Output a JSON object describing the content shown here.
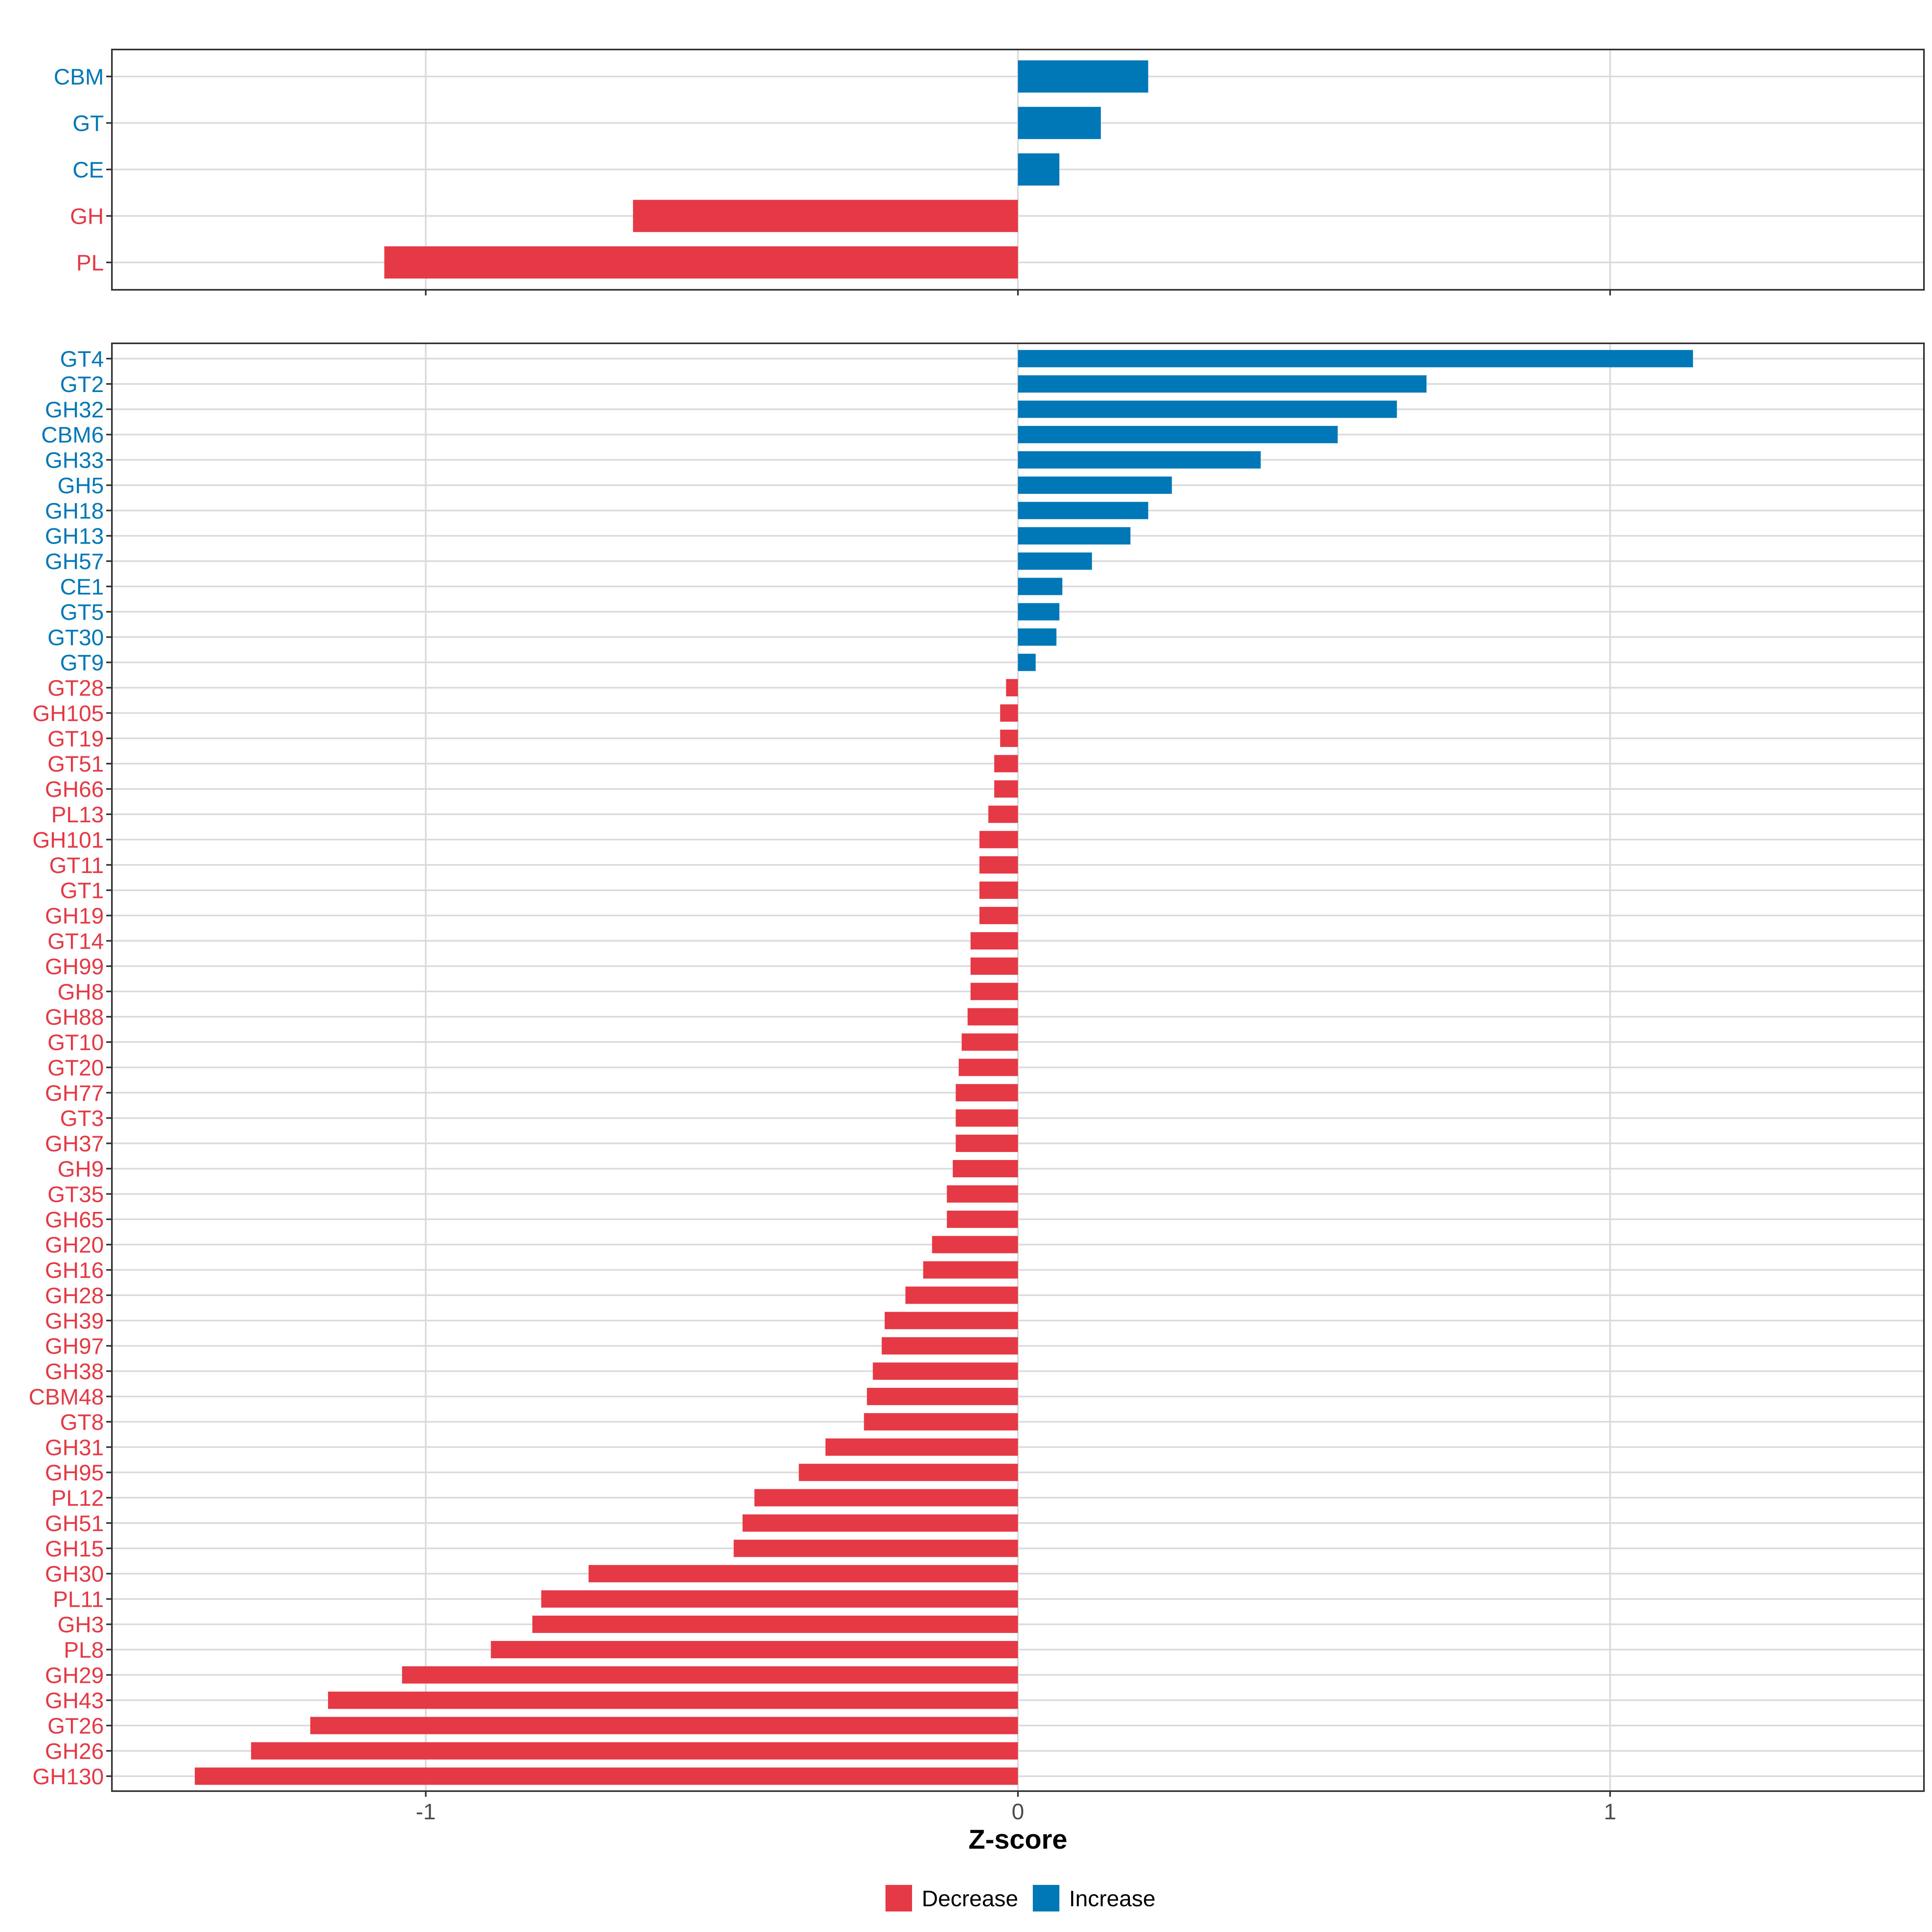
{
  "colors": {
    "decrease": "#E63946",
    "increase": "#0077B6",
    "grid": "#DADADA",
    "panel_border": "#333333",
    "tick_text": "#4D4D4D"
  },
  "chart_data": [
    {
      "type": "bar",
      "orientation": "horizontal",
      "panel": "families",
      "categories": [
        "CBM",
        "GT",
        "CE",
        "GH",
        "PL"
      ],
      "values": [
        0.22,
        0.14,
        0.07,
        -0.65,
        -1.07
      ],
      "xlim": [
        -1.53,
        1.53
      ],
      "grid": true
    },
    {
      "type": "bar",
      "orientation": "horizontal",
      "panel": "subfamilies",
      "categories": [
        "GT4",
        "GT2",
        "GH32",
        "CBM6",
        "GH33",
        "GH5",
        "GH18",
        "GH13",
        "GH57",
        "CE1",
        "GT5",
        "GT30",
        "GT9",
        "GT28",
        "GH105",
        "GT19",
        "GT51",
        "GH66",
        "PL13",
        "GH101",
        "GT11",
        "GT1",
        "GH19",
        "GT14",
        "GH99",
        "GH8",
        "GH88",
        "GT10",
        "GT20",
        "GH77",
        "GT3",
        "GH37",
        "GH9",
        "GT35",
        "GH65",
        "GH20",
        "GH16",
        "GH28",
        "GH39",
        "GH97",
        "GH38",
        "CBM48",
        "GT8",
        "GH31",
        "GH95",
        "PL12",
        "GH51",
        "GH15",
        "GH30",
        "PL11",
        "GH3",
        "PL8",
        "GH29",
        "GH43",
        "GT26",
        "GH26",
        "GH130"
      ],
      "values": [
        1.14,
        0.69,
        0.64,
        0.54,
        0.41,
        0.26,
        0.22,
        0.19,
        0.125,
        0.075,
        0.07,
        0.065,
        0.03,
        -0.02,
        -0.03,
        -0.03,
        -0.04,
        -0.04,
        -0.05,
        -0.065,
        -0.065,
        -0.065,
        -0.065,
        -0.08,
        -0.08,
        -0.08,
        -0.085,
        -0.095,
        -0.1,
        -0.105,
        -0.105,
        -0.105,
        -0.11,
        -0.12,
        -0.12,
        -0.145,
        -0.16,
        -0.19,
        -0.225,
        -0.23,
        -0.245,
        -0.255,
        -0.26,
        -0.325,
        -0.37,
        -0.445,
        -0.465,
        -0.48,
        -0.725,
        -0.805,
        -0.82,
        -0.89,
        -1.04,
        -1.165,
        -1.195,
        -1.295,
        -1.39
      ],
      "xlim": [
        -1.53,
        1.53
      ],
      "xticks": [
        "-1",
        "0",
        "1"
      ],
      "xlabel": "Z-score",
      "grid": true
    }
  ],
  "legend": {
    "position": "bottom",
    "items": [
      {
        "label": "Decrease",
        "color_key": "decrease"
      },
      {
        "label": "Increase",
        "color_key": "increase"
      }
    ]
  }
}
